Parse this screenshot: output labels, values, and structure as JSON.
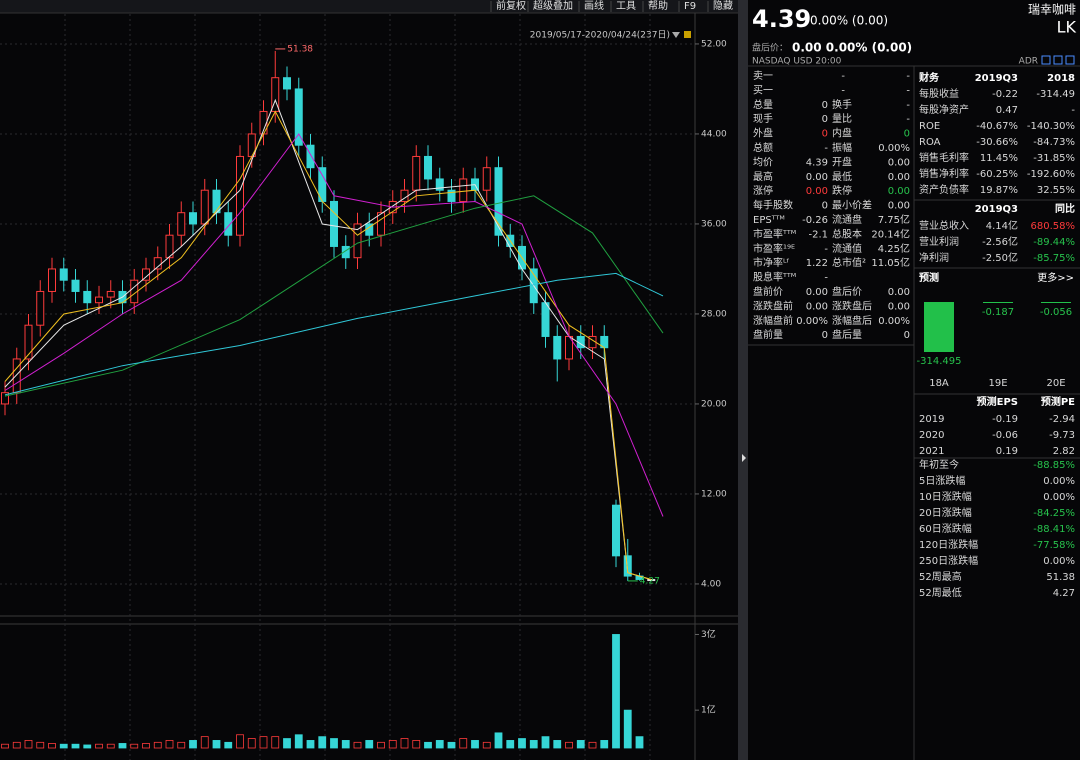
{
  "toolbar": [
    "前复权",
    "超级叠加",
    "画线",
    "工具",
    "帮助",
    "F9",
    "隐藏"
  ],
  "header": {
    "price": "4.39",
    "change": "0.00% (0.00)",
    "name": "瑞幸咖啡",
    "ticker": "LK",
    "after_label": "盘后价：",
    "after_value": "0.00 0.00% (0.00)",
    "exchange": "NASDAQ  USD  20:00",
    "adr": "ADR"
  },
  "chart_data": {
    "type": "candlestick",
    "range_label": "2019/05/17-2020/04/24(237日)",
    "open": [
      20,
      21,
      24,
      27,
      30,
      32,
      31,
      30,
      29,
      29.5,
      30,
      29,
      31,
      32,
      33,
      35,
      37,
      36,
      39,
      37,
      35,
      42,
      44,
      46,
      49,
      48,
      43,
      41,
      38,
      34,
      33,
      36,
      35,
      37,
      38,
      39,
      42,
      40,
      39,
      38,
      40,
      39,
      41,
      35,
      34,
      32,
      29,
      26,
      24,
      26,
      25,
      26,
      11,
      6.5,
      4.7,
      4.39
    ],
    "close": [
      21,
      24,
      27,
      30,
      32,
      31,
      30,
      29,
      29.5,
      30,
      29,
      31,
      32,
      33,
      35,
      37,
      36,
      39,
      37,
      35,
      42,
      44,
      46,
      49,
      48,
      43,
      41,
      38,
      34,
      33,
      36,
      35,
      37,
      38,
      39,
      42,
      40,
      39,
      38,
      40,
      39,
      41,
      35,
      34,
      32,
      29,
      26,
      24,
      26,
      25,
      26,
      25,
      6.5,
      4.7,
      4.4,
      4.39
    ],
    "high": [
      22,
      25,
      28,
      31,
      33,
      33,
      32,
      31,
      30.5,
      31,
      31,
      32,
      33,
      34,
      36,
      38,
      38,
      40,
      40,
      38,
      43,
      45,
      47,
      51.38,
      50,
      49,
      44,
      42,
      39,
      35,
      37,
      37,
      38,
      39,
      40,
      43,
      43,
      41,
      40,
      41,
      41,
      42,
      42,
      36,
      35,
      33,
      30,
      27,
      27,
      27,
      27,
      27,
      11.5,
      8,
      5,
      4.39
    ],
    "low": [
      19,
      20,
      23,
      26,
      29,
      30,
      29,
      28,
      28,
      28.5,
      28,
      28,
      30,
      31,
      32,
      34,
      35,
      35,
      36,
      34,
      34,
      41,
      43,
      45,
      47,
      42,
      40,
      37,
      33,
      32,
      32,
      34,
      34,
      36,
      37,
      38,
      39,
      38,
      37,
      37,
      38,
      38,
      34,
      33,
      31,
      28,
      25,
      22,
      23,
      24,
      24,
      24,
      5.5,
      4.27,
      4.3,
      4.39
    ],
    "up_color": "#ff3b3b",
    "down_color": "#36d6d6",
    "flat_color": "#e8e8e8",
    "ylim": [
      1.24,
      53.24
    ],
    "yticks": [
      {
        "value": 52,
        "label": "52.00"
      },
      {
        "value": 44,
        "label": "44.00"
      },
      {
        "value": 36,
        "label": "36.00"
      },
      {
        "value": 28,
        "label": "28.00"
      },
      {
        "value": 20,
        "label": "20.00"
      },
      {
        "value": 12,
        "label": "12.00"
      },
      {
        "value": 4,
        "label": "4.00"
      }
    ],
    "high_label": 51.38,
    "low_label": 4.27,
    "moving_averages": [
      {
        "color": "#e8e8e8",
        "x": [
          0,
          5,
          10,
          15,
          20,
          23,
          27,
          30,
          35,
          40,
          44,
          48,
          51,
          53,
          55
        ],
        "values": [
          21.5,
          27,
          29.5,
          34,
          39,
          47,
          36,
          35.5,
          39,
          39.5,
          32,
          26,
          24,
          5,
          4.39
        ]
      },
      {
        "color": "#f0c020",
        "x": [
          0,
          5,
          10,
          15,
          20,
          23,
          27,
          30,
          35,
          40,
          44,
          48,
          51,
          53,
          55
        ],
        "values": [
          22,
          28,
          29,
          33,
          40,
          46,
          38,
          35,
          38.5,
          39,
          33,
          27,
          25,
          5,
          4.4
        ]
      },
      {
        "color": "#d020d0",
        "x": [
          0,
          5,
          10,
          15,
          20,
          25,
          28,
          33,
          40,
          44,
          48,
          52,
          56
        ],
        "values": [
          21.2,
          24.5,
          28,
          31,
          37,
          44,
          38.5,
          37.5,
          38,
          36,
          26,
          20,
          10
        ]
      },
      {
        "color": "#20a040",
        "x": [
          0,
          10,
          20,
          30,
          40,
          45,
          50,
          56
        ],
        "values": [
          20.7,
          23,
          27.5,
          34.3,
          37.4,
          38.5,
          35.2,
          26.3
        ]
      },
      {
        "color": "#30c8d8",
        "x": [
          0,
          10,
          20,
          30,
          40,
          47,
          52,
          56
        ],
        "values": [
          20.8,
          23.4,
          25.2,
          27.6,
          29.6,
          31,
          31.6,
          29.6
        ]
      }
    ],
    "volume": {
      "values": [
        0.1,
        0.15,
        0.2,
        0.15,
        0.12,
        0.1,
        0.1,
        0.08,
        0.1,
        0.1,
        0.12,
        0.1,
        0.12,
        0.15,
        0.2,
        0.15,
        0.2,
        0.3,
        0.2,
        0.15,
        0.35,
        0.25,
        0.3,
        0.3,
        0.25,
        0.35,
        0.2,
        0.3,
        0.25,
        0.2,
        0.15,
        0.2,
        0.15,
        0.2,
        0.25,
        0.2,
        0.15,
        0.2,
        0.15,
        0.25,
        0.2,
        0.15,
        0.4,
        0.2,
        0.25,
        0.2,
        0.3,
        0.2,
        0.15,
        0.2,
        0.15,
        0.2,
        3.0,
        1.0,
        0.3,
        0
      ],
      "ylim": [
        0,
        3.25
      ],
      "yticks": [
        {
          "value": 3,
          "label": "3亿"
        },
        {
          "value": 1,
          "label": "1亿"
        }
      ]
    }
  },
  "quote": {
    "rows": [
      [
        "卖一",
        "-",
        "-"
      ],
      [
        "买一",
        "-",
        "-"
      ],
      [
        "总量",
        "0",
        "换手",
        "-"
      ],
      [
        "现手",
        "0",
        "量比",
        "-"
      ],
      [
        "外盘",
        "0",
        "内盘",
        "0"
      ],
      [
        "总额",
        "-",
        "振幅",
        "0.00%"
      ],
      [
        "均价",
        "4.39",
        "开盘",
        "0.00"
      ],
      [
        "最高",
        "0.00",
        "最低",
        "0.00"
      ],
      [
        "涨停",
        "0.00",
        "跌停",
        "0.00"
      ],
      [
        "每手股数",
        "0",
        "最小价差",
        "0.00"
      ],
      [
        "EPSᵀᵀᴹ",
        "-0.26",
        "流通盘",
        "7.75亿"
      ],
      [
        "市盈率ᵀᵀᴹ",
        "-2.1",
        "总股本",
        "20.14亿"
      ],
      [
        "市盈率¹⁹ᴱ",
        "-",
        "流通值",
        "4.25亿"
      ],
      [
        "市净率ᴸᶠ",
        "1.22",
        "总市值²",
        "11.05亿"
      ],
      [
        "股息率ᵀᵀᴹ",
        "-"
      ],
      [
        "盘前价",
        "0.00",
        "盘后价",
        "0.00"
      ],
      [
        "涨跌盘前",
        "0.00",
        "涨跌盘后",
        "0.00"
      ],
      [
        "涨幅盘前",
        "0.00%",
        "涨幅盘后",
        "0.00%"
      ],
      [
        "盘前量",
        "0",
        "盘后量",
        "0"
      ]
    ],
    "highlight": [
      {
        "row": 4,
        "cell": 1,
        "color": "#ff3b3b"
      },
      {
        "row": 4,
        "cell": 3,
        "color": "#27c24c"
      },
      {
        "row": 8,
        "cell": 1,
        "color": "#ff3b3b"
      },
      {
        "row": 8,
        "cell": 3,
        "color": "#27c24c"
      }
    ]
  },
  "financials": {
    "header": [
      "财务",
      "2019Q3",
      "2018"
    ],
    "rows": [
      [
        "每股收益",
        "-0.22",
        "-314.49"
      ],
      [
        "每股净资产",
        "0.47",
        "-"
      ],
      [
        "ROE",
        "-40.67%",
        "-140.30%"
      ],
      [
        "ROA",
        "-30.66%",
        "-84.73%"
      ],
      [
        "销售毛利率",
        "11.45%",
        "-31.85%"
      ],
      [
        "销售净利率",
        "-60.25%",
        "-192.60%"
      ],
      [
        "资产负债率",
        "19.87%",
        "32.55%"
      ]
    ]
  },
  "income": {
    "header": [
      "2019Q3",
      "同比"
    ],
    "rows": [
      [
        "营业总收入",
        "4.14亿",
        "680.58%"
      ],
      [
        "营业利润",
        "-2.56亿",
        "-89.44%"
      ],
      [
        "净利润",
        "-2.50亿",
        "-85.75%"
      ]
    ]
  },
  "forecast": {
    "title": "预测",
    "more": "更多>>",
    "type": "bar",
    "categories": [
      "18A",
      "19E",
      "20E"
    ],
    "values": [
      -314.495,
      -0.187,
      -0.056
    ],
    "color": "#22c04a"
  },
  "forecast_table": {
    "header": [
      "预测EPS",
      "预测PE"
    ],
    "rows": [
      [
        "2019",
        "-0.19",
        "-2.94"
      ],
      [
        "2020",
        "-0.06",
        "-9.73"
      ],
      [
        "2021",
        "0.19",
        "2.82"
      ]
    ]
  },
  "performance": [
    [
      "年初至今",
      "-88.85%"
    ],
    [
      "5日涨跌幅",
      "0.00%"
    ],
    [
      "10日涨跌幅",
      "0.00%"
    ],
    [
      "20日涨跌幅",
      "-84.25%"
    ],
    [
      "60日涨跌幅",
      "-88.41%"
    ],
    [
      "120日涨跌幅",
      "-77.58%"
    ],
    [
      "250日涨跌幅",
      "0.00%"
    ],
    [
      "52周最高",
      "51.38"
    ],
    [
      "52周最低",
      "4.27"
    ]
  ]
}
